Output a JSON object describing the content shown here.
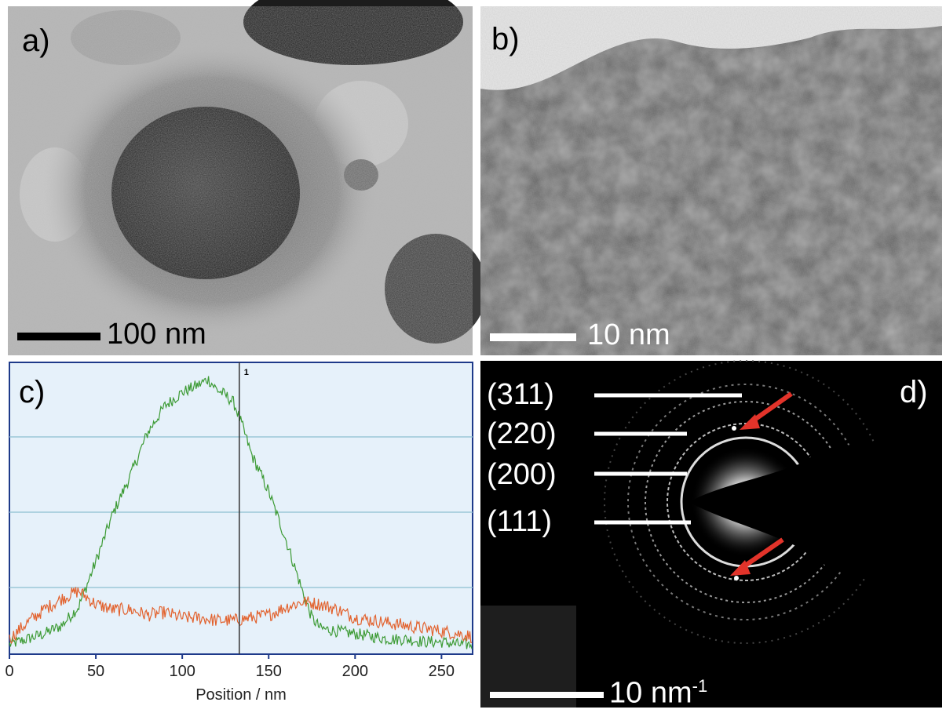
{
  "panel_a": {
    "letter": "a)",
    "scale_label": "100 nm"
  },
  "panel_b": {
    "letter": "b)",
    "scale_label": "10 nm"
  },
  "panel_c": {
    "letter": "c)",
    "chart_data": {
      "type": "line",
      "xlabel": "Position / nm",
      "ylabel": "",
      "xlim": [
        0,
        268
      ],
      "x_ticks": [
        "0",
        "50",
        "100",
        "150",
        "200",
        "250"
      ],
      "grid": true,
      "cursor_marker": {
        "x": 133,
        "label": "1"
      },
      "series": [
        {
          "color": "#3d9b35",
          "x": [
            0,
            10,
            20,
            30,
            40,
            50,
            60,
            70,
            80,
            90,
            100,
            110,
            115,
            120,
            125,
            130,
            135,
            140,
            150,
            160,
            170,
            175,
            180,
            190,
            200,
            210,
            220,
            230,
            240,
            250,
            260,
            268
          ],
          "y": [
            0.03,
            0.05,
            0.07,
            0.1,
            0.17,
            0.34,
            0.52,
            0.66,
            0.82,
            0.92,
            0.97,
            1.0,
            1.02,
            0.98,
            0.96,
            0.93,
            0.84,
            0.74,
            0.6,
            0.42,
            0.22,
            0.13,
            0.09,
            0.08,
            0.07,
            0.06,
            0.05,
            0.05,
            0.04,
            0.04,
            0.03,
            0.03
          ]
        },
        {
          "color": "#e2622e",
          "x": [
            0,
            10,
            20,
            30,
            40,
            50,
            60,
            70,
            80,
            90,
            100,
            110,
            120,
            130,
            140,
            150,
            160,
            170,
            180,
            190,
            200,
            210,
            220,
            230,
            240,
            250,
            260,
            268
          ],
          "y": [
            0.05,
            0.11,
            0.16,
            0.2,
            0.23,
            0.18,
            0.16,
            0.16,
            0.14,
            0.15,
            0.13,
            0.13,
            0.12,
            0.12,
            0.13,
            0.14,
            0.17,
            0.19,
            0.18,
            0.16,
            0.13,
            0.12,
            0.11,
            0.1,
            0.09,
            0.08,
            0.07,
            0.06
          ]
        }
      ]
    }
  },
  "panel_d": {
    "letter": "d)",
    "scale_label": "10 nm",
    "scale_label_sup": "-1",
    "ring_labels": [
      "(311)",
      "(220)",
      "(200)",
      "(111)"
    ]
  },
  "colors": {
    "arrow": "#e2332a",
    "chart_bg": "#e6f1fa",
    "grid": "#9cc8d8"
  }
}
